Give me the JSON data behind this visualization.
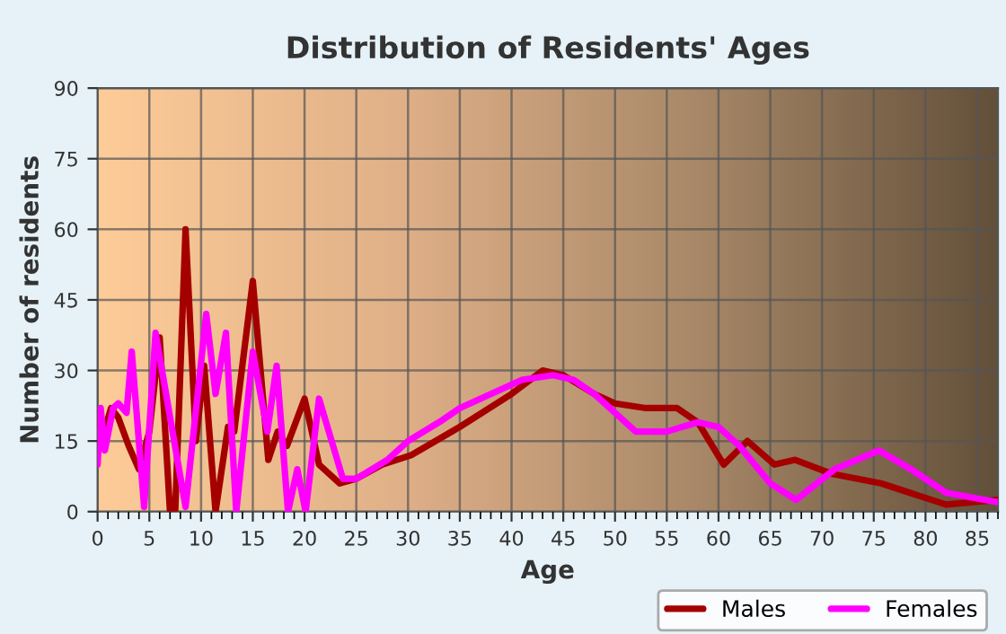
{
  "chart_data": {
    "type": "line",
    "title": "Distribution of Residents' Ages",
    "xlabel": "Age",
    "ylabel": "Number of residents",
    "xlim": [
      0,
      87
    ],
    "xticks": [
      0,
      5,
      10,
      15,
      20,
      25,
      30,
      35,
      40,
      45,
      50,
      55,
      60,
      65,
      70,
      75,
      80,
      85
    ],
    "ylim": [
      0,
      90
    ],
    "yticks": [
      0,
      15,
      30,
      45,
      60,
      75,
      90
    ],
    "grid": true,
    "legend": "bottom",
    "series": [
      {
        "name": "Males",
        "color": "#a50000",
        "x": [
          0,
          0.5,
          1.3,
          2,
          3,
          4,
          5,
          6,
          7,
          7.5,
          8.5,
          9.5,
          10.3,
          11.4,
          12.6,
          13.2,
          15,
          16.5,
          17.4,
          18.3,
          20,
          21.4,
          23.4,
          25,
          27.5,
          30.3,
          35,
          40,
          43,
          45,
          48,
          50,
          53,
          56,
          58,
          60.5,
          62.8,
          65.4,
          67.4,
          71,
          75.7,
          78.5,
          82,
          87
        ],
        "values": [
          21,
          16,
          22,
          20,
          14,
          9,
          17,
          37,
          0,
          0,
          60,
          15,
          31,
          0,
          18,
          17,
          49,
          11,
          17,
          14,
          24,
          10,
          6,
          7,
          10,
          12,
          18,
          25,
          30,
          29,
          25,
          23,
          22,
          22,
          19,
          10,
          15,
          10,
          11,
          8,
          6,
          4,
          1.5,
          2.5
        ]
      },
      {
        "name": "Females",
        "color": "#ff00ff",
        "x": [
          0,
          0.3,
          0.7,
          1.5,
          2,
          2.8,
          3.3,
          4.5,
          5.6,
          8.5,
          10.5,
          11.4,
          12.4,
          13.4,
          15,
          16.4,
          17.3,
          18.4,
          19.3,
          20.1,
          21.4,
          23.7,
          25,
          28,
          30,
          33,
          35,
          38,
          41,
          44,
          46,
          48,
          50,
          52,
          55,
          58,
          60,
          62,
          65,
          67.5,
          71.2,
          75.5,
          78.6,
          82,
          87
        ],
        "values": [
          10,
          22,
          13,
          22,
          23,
          21,
          34,
          1,
          38,
          1,
          42,
          25,
          38,
          0,
          34,
          17,
          31,
          0,
          9,
          0,
          24,
          7,
          7,
          11,
          15,
          19,
          22,
          25,
          28,
          29,
          28,
          25,
          21,
          17,
          17,
          19,
          18,
          14,
          6,
          2.5,
          9,
          13,
          9,
          4,
          2
        ]
      }
    ]
  }
}
